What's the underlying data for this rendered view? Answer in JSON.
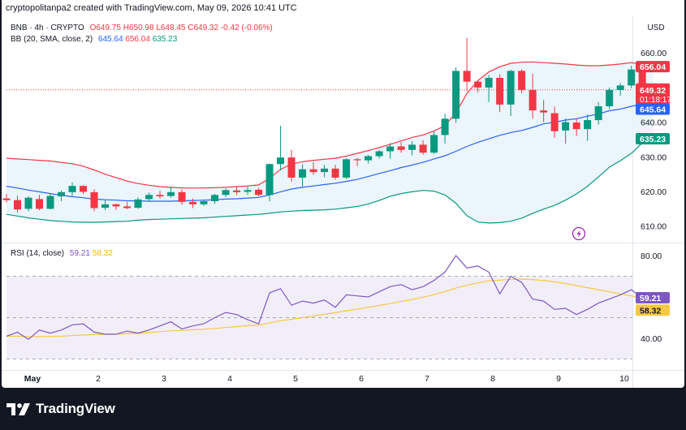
{
  "header": {
    "created_by": "cryptopolitanpa2 created with TradingView.com, May 09, 2026 10:41 UTC"
  },
  "currency_label": "USD",
  "main_legend": {
    "symbol": "BNB · 4h · CRYPTO",
    "open": "O649.75",
    "high": "H650.98",
    "low": "L648.45",
    "close": "C649.32",
    "change": "-0.42 (-0.06%)"
  },
  "bb_legend": {
    "label": "BB (20, SMA, close, 2)",
    "basis": "645.64",
    "upper": "656.04",
    "lower": "635.23"
  },
  "rsi_legend": {
    "label": "RSI (14, close)",
    "rsi": "59.21",
    "ma": "58.32"
  },
  "price_badges": {
    "upper": "656.04",
    "last": "649.32",
    "countdown": "01:18:17",
    "basis": "645.64",
    "lower": "635.23"
  },
  "rsi_badges": {
    "rsi": "59.21",
    "ma": "58.32"
  },
  "brand": "TradingView",
  "colors": {
    "up": "#089981",
    "down": "#f23645",
    "basis": "#2962ff",
    "upper_band": "#f23645",
    "lower_band": "#089981",
    "band_fill": "#e7f3fc",
    "rsi": "#7e57c2",
    "rsi_ma": "#f7c843"
  },
  "chart_data": [
    {
      "type": "candlestick",
      "symbol": "BNB",
      "timeframe": "4h",
      "x_ticks": [
        "May",
        "2",
        "3",
        "4",
        "5",
        "6",
        "7",
        "8",
        "9",
        "10"
      ],
      "y_ticks": [
        "610.00",
        "620.00",
        "630.00",
        "640.00",
        "650.00",
        "660.00"
      ],
      "ylim": [
        607,
        668
      ],
      "x_start_day": 1.0,
      "candle_step_days": 0.1667,
      "candles": [
        [
          618.0,
          619.3,
          616.8,
          617.5
        ],
        [
          617.5,
          618.8,
          614.0,
          614.8
        ],
        [
          615.0,
          618.6,
          614.3,
          618.2
        ],
        [
          617.8,
          619.0,
          614.6,
          615.0
        ],
        [
          615.0,
          619.3,
          614.8,
          618.7
        ],
        [
          618.6,
          620.3,
          617.2,
          619.8
        ],
        [
          619.8,
          622.6,
          618.8,
          621.6
        ],
        [
          621.6,
          621.8,
          619.2,
          619.9
        ],
        [
          619.8,
          620.7,
          614.3,
          615.2
        ],
        [
          615.3,
          617.6,
          614.6,
          616.3
        ],
        [
          616.3,
          616.5,
          614.7,
          615.7
        ],
        [
          615.7,
          617.0,
          614.9,
          615.2
        ],
        [
          615.3,
          618.3,
          615.0,
          617.7
        ],
        [
          617.8,
          619.7,
          617.0,
          619.0
        ],
        [
          619.0,
          620.2,
          617.9,
          618.6
        ],
        [
          618.7,
          621.4,
          618.2,
          619.8
        ],
        [
          619.8,
          620.6,
          616.2,
          617.0
        ],
        [
          617.0,
          618.0,
          615.2,
          616.3
        ],
        [
          616.3,
          617.5,
          615.8,
          617.2
        ],
        [
          617.2,
          619.3,
          616.4,
          619.0
        ],
        [
          619.0,
          620.8,
          618.4,
          620.4
        ],
        [
          620.3,
          621.4,
          619.0,
          619.8
        ],
        [
          619.9,
          621.5,
          619.0,
          620.4
        ],
        [
          620.5,
          621.0,
          618.6,
          619.0
        ],
        [
          619.0,
          628.1,
          617.2,
          627.9
        ],
        [
          627.9,
          639.0,
          626.0,
          629.8
        ],
        [
          629.8,
          632.0,
          622.8,
          624.0
        ],
        [
          624.0,
          627.8,
          621.3,
          626.4
        ],
        [
          626.4,
          628.5,
          624.8,
          625.6
        ],
        [
          625.6,
          627.7,
          624.1,
          626.6
        ],
        [
          626.6,
          627.7,
          623.4,
          624.0
        ],
        [
          624.0,
          629.6,
          623.6,
          629.3
        ],
        [
          629.3,
          629.7,
          627.3,
          629.0
        ],
        [
          629.0,
          630.5,
          628.1,
          630.2
        ],
        [
          630.2,
          632.0,
          629.5,
          631.6
        ],
        [
          631.6,
          634.0,
          629.5,
          633.0
        ],
        [
          633.0,
          634.3,
          631.2,
          632.0
        ],
        [
          632.0,
          634.5,
          630.4,
          633.5
        ],
        [
          633.5,
          634.8,
          630.6,
          631.2
        ],
        [
          631.2,
          637.4,
          630.8,
          636.3
        ],
        [
          636.3,
          642.4,
          633.8,
          641.0
        ],
        [
          641.0,
          655.8,
          639.8,
          654.8
        ],
        [
          654.8,
          664.3,
          648.9,
          651.7
        ],
        [
          651.7,
          652.2,
          648.6,
          650.0
        ],
        [
          650.0,
          653.6,
          645.8,
          652.8
        ],
        [
          652.8,
          653.8,
          642.9,
          645.1
        ],
        [
          645.1,
          655.2,
          641.8,
          654.8
        ],
        [
          654.8,
          655.3,
          648.3,
          649.3
        ],
        [
          649.3,
          654.0,
          641.0,
          643.4
        ],
        [
          643.4,
          646.4,
          640.0,
          642.8
        ],
        [
          642.6,
          644.5,
          635.5,
          637.4
        ],
        [
          637.6,
          641.1,
          633.8,
          640.0
        ],
        [
          639.9,
          641.2,
          636.0,
          638.0
        ],
        [
          638.0,
          642.3,
          634.6,
          640.6
        ],
        [
          640.6,
          645.8,
          639.3,
          644.6
        ],
        [
          644.6,
          650.0,
          643.8,
          649.3
        ],
        [
          649.3,
          651.3,
          647.6,
          650.6
        ],
        [
          650.6,
          656.3,
          649.8,
          655.2
        ],
        [
          655.2,
          655.5,
          650.4,
          650.8
        ],
        [
          649.75,
          650.98,
          648.45,
          649.32
        ]
      ],
      "bb_basis": [
        621.5,
        621.0,
        620.4,
        619.9,
        619.4,
        618.9,
        618.5,
        618.2,
        617.8,
        617.6,
        617.5,
        617.3,
        617.3,
        617.2,
        617.2,
        617.2,
        617.3,
        617.4,
        617.5,
        617.6,
        617.8,
        617.9,
        618.1,
        618.3,
        619.0,
        619.9,
        620.7,
        621.2,
        621.6,
        622.0,
        622.4,
        622.9,
        623.5,
        624.3,
        625.2,
        626.0,
        626.9,
        627.6,
        628.4,
        629.4,
        630.3,
        631.6,
        633.0,
        634.2,
        635.2,
        636.2,
        637.0,
        637.6,
        638.5,
        639.5,
        640.0,
        640.6,
        641.0,
        641.7,
        642.4,
        643.3,
        643.8,
        644.6,
        645.2,
        645.64
      ],
      "bb_upper": [
        629.6,
        629.4,
        629.2,
        629.0,
        628.8,
        628.4,
        628.0,
        627.3,
        626.2,
        625.0,
        624.0,
        623.0,
        622.3,
        621.8,
        621.4,
        621.2,
        621.0,
        621.0,
        621.0,
        621.1,
        621.2,
        621.4,
        621.6,
        621.9,
        623.8,
        626.4,
        627.9,
        628.6,
        629.0,
        629.3,
        629.6,
        630.2,
        631.0,
        631.8,
        632.7,
        633.6,
        634.6,
        635.6,
        636.3,
        637.5,
        639.0,
        642.7,
        648.3,
        652.0,
        654.5,
        656.0,
        657.0,
        657.3,
        657.4,
        657.2,
        657.0,
        656.8,
        656.5,
        656.3,
        656.3,
        656.5,
        656.8,
        657.2,
        656.6,
        656.04
      ],
      "bb_lower": [
        613.4,
        612.9,
        612.4,
        612.0,
        611.6,
        611.4,
        611.2,
        611.1,
        611.1,
        611.2,
        611.3,
        611.4,
        611.7,
        611.9,
        612.0,
        612.1,
        612.2,
        612.3,
        612.4,
        612.6,
        612.8,
        613.0,
        613.2,
        613.4,
        613.7,
        614.1,
        614.3,
        614.5,
        614.6,
        614.7,
        614.9,
        615.3,
        615.7,
        616.4,
        617.4,
        618.6,
        619.4,
        619.9,
        620.3,
        620.1,
        619.0,
        616.6,
        613.0,
        611.2,
        610.9,
        611.0,
        611.4,
        612.3,
        613.7,
        614.9,
        616.0,
        617.5,
        619.3,
        621.5,
        624.2,
        627.0,
        628.9,
        631.0,
        634.0,
        635.23
      ]
    },
    {
      "type": "line",
      "title": "RSI (14, close)",
      "ylim": [
        28,
        86
      ],
      "y_ticks": [
        "40.00",
        "80.00"
      ],
      "overbought": 70,
      "oversold": 30,
      "middle": 50,
      "rsi": [
        41.0,
        43.0,
        39.5,
        44.0,
        42.5,
        44.0,
        46.5,
        47.0,
        43.0,
        42.0,
        42.0,
        43.5,
        42.5,
        44.0,
        46.0,
        48.0,
        44.5,
        46.0,
        47.0,
        50.0,
        52.5,
        51.5,
        49.0,
        47.0,
        62.0,
        64.0,
        56.0,
        58.0,
        57.0,
        58.5,
        55.0,
        61.0,
        60.5,
        60.0,
        62.5,
        65.0,
        66.0,
        63.5,
        65.0,
        68.0,
        72.0,
        80.0,
        74.0,
        75.0,
        72.0,
        61.5,
        70.0,
        67.0,
        59.0,
        58.0,
        54.0,
        54.5,
        51.5,
        54.0,
        57.0,
        59.0,
        61.0,
        63.5,
        59.5,
        59.21
      ],
      "rsi_ma": [
        41.0,
        41.0,
        40.8,
        40.8,
        40.9,
        41.0,
        41.3,
        41.6,
        41.8,
        41.9,
        42.0,
        42.2,
        42.4,
        42.8,
        43.2,
        43.6,
        43.8,
        44.1,
        44.4,
        44.8,
        45.2,
        45.7,
        46.1,
        46.4,
        47.5,
        48.5,
        49.2,
        50.0,
        50.8,
        51.6,
        52.4,
        53.3,
        54.1,
        55.0,
        55.9,
        56.8,
        57.8,
        58.8,
        59.9,
        61.1,
        62.6,
        64.3,
        65.6,
        66.8,
        67.8,
        68.1,
        68.5,
        68.6,
        68.4,
        68.0,
        67.3,
        66.5,
        65.5,
        64.5,
        63.5,
        62.5,
        61.5,
        60.5,
        59.0,
        58.32
      ]
    }
  ]
}
